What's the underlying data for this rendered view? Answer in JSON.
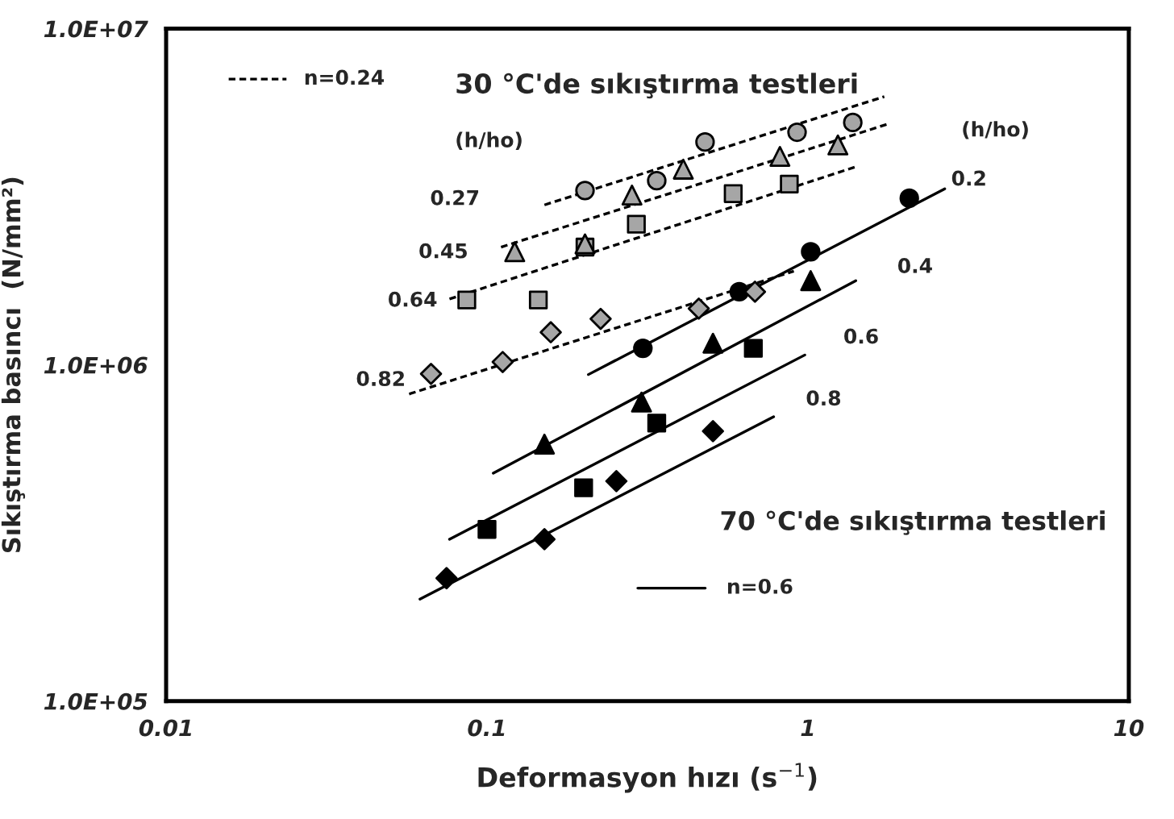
{
  "chart_data": {
    "type": "scatter",
    "xlabel": "Deformasyon hızı (s$^{−1}$)",
    "ylabel": "Sıkıştırma basıncı  (N/mm²)",
    "log": "xy",
    "xlim": [
      0.01,
      10
    ],
    "ylim": [
      100000,
      10000000
    ],
    "xticks": [
      0.01,
      0.1,
      1,
      10
    ],
    "yticks": [
      {
        "value": 100000,
        "label": "1.0E+05"
      },
      {
        "value": 1000000,
        "label": "1.0E+06"
      },
      {
        "value": 10000000,
        "label": "1.0E+07"
      }
    ],
    "grid": false,
    "legend": false,
    "series": [
      {
        "marker": "circle",
        "color": "#a6a6a6",
        "x": [
          0.202,
          0.338,
          0.478,
          0.925,
          1.38
        ],
        "values": [
          3300000,
          3530000,
          4600000,
          4920000,
          5260000
        ]
      },
      {
        "marker": "triangle",
        "color": "#a6a6a6",
        "x": [
          0.122,
          0.202,
          0.283,
          0.409,
          0.818,
          1.24
        ],
        "values": [
          2170000,
          2290000,
          3200000,
          3820000,
          4170000,
          4510000
        ]
      },
      {
        "marker": "square",
        "color": "#a6a6a6",
        "x": [
          0.0865,
          0.1445,
          0.202,
          0.292,
          0.585,
          0.875
        ],
        "values": [
          1560000,
          1560000,
          2240000,
          2620000,
          3230000,
          3450000
        ]
      },
      {
        "marker": "diamond",
        "color": "#a6a6a6",
        "x": [
          0.0669,
          0.1119,
          0.158,
          0.226,
          0.457,
          0.684
        ],
        "values": [
          940000,
          1020000,
          1250000,
          1370000,
          1470000,
          1650000
        ]
      },
      {
        "marker": "circle",
        "color": "#000000",
        "x": [
          0.306,
          0.611,
          1.02,
          2.07
        ],
        "values": [
          1120000,
          1650000,
          2170000,
          3130000
        ]
      },
      {
        "marker": "triangle",
        "color": "#000000",
        "x": [
          0.151,
          0.303,
          0.506,
          1.02
        ],
        "values": [
          581000,
          775000,
          1160000,
          1780000
        ]
      },
      {
        "marker": "square",
        "color": "#000000",
        "x": [
          0.1,
          0.2,
          0.338,
          0.676
        ],
        "values": [
          324000,
          431000,
          671000,
          1120000
        ]
      },
      {
        "marker": "diamond",
        "color": "#000000",
        "x": [
          0.0748,
          0.151,
          0.253,
          0.506
        ],
        "values": [
          232000,
          303000,
          451000,
          635000
        ]
      },
      {
        "type": "line",
        "line_style": "dashed",
        "marker": "none",
        "color": "#000000",
        "x": [
          0.151,
          1.73
        ],
        "values": [
          2990000,
          6280000
        ]
      },
      {
        "type": "line",
        "line_style": "dashed",
        "marker": "none",
        "color": "#000000",
        "x": [
          0.1106,
          1.77
        ],
        "values": [
          2240000,
          5200000
        ]
      },
      {
        "type": "line",
        "line_style": "dashed",
        "marker": "none",
        "color": "#000000",
        "x": [
          0.0764,
          1.43
        ],
        "values": [
          1570000,
          3900000
        ]
      },
      {
        "type": "line",
        "line_style": "dashed",
        "marker": "none",
        "color": "#000000",
        "x": [
          0.0572,
          0.904
        ],
        "values": [
          819000,
          1900000
        ]
      },
      {
        "type": "line",
        "line_style": "solid",
        "marker": "none",
        "color": "#000000",
        "x": [
          0.207,
          2.67
        ],
        "values": [
          936000,
          3340000
        ]
      },
      {
        "type": "line",
        "line_style": "solid",
        "marker": "none",
        "color": "#000000",
        "x": [
          0.1046,
          1.41
        ],
        "values": [
          476000,
          1780000
        ]
      },
      {
        "type": "line",
        "line_style": "solid",
        "marker": "none",
        "color": "#000000",
        "x": [
          0.0764,
          0.978
        ],
        "values": [
          303000,
          1070000
        ]
      },
      {
        "type": "line",
        "line_style": "solid",
        "marker": "none",
        "color": "#000000",
        "x": [
          0.0618,
          0.782
        ],
        "values": [
          201000,
          701000
        ]
      }
    ],
    "annotations": [
      "30 °C'de sıkıştırma testleri",
      "70 °C'de sıkıştırma testleri",
      "(h/ho)",
      "(h/ho)",
      "n=0.24",
      "n=0.6",
      "0.27",
      "0.45",
      "0.64",
      "0.82",
      "0.2",
      "0.4",
      "0.6",
      "0.8"
    ]
  }
}
